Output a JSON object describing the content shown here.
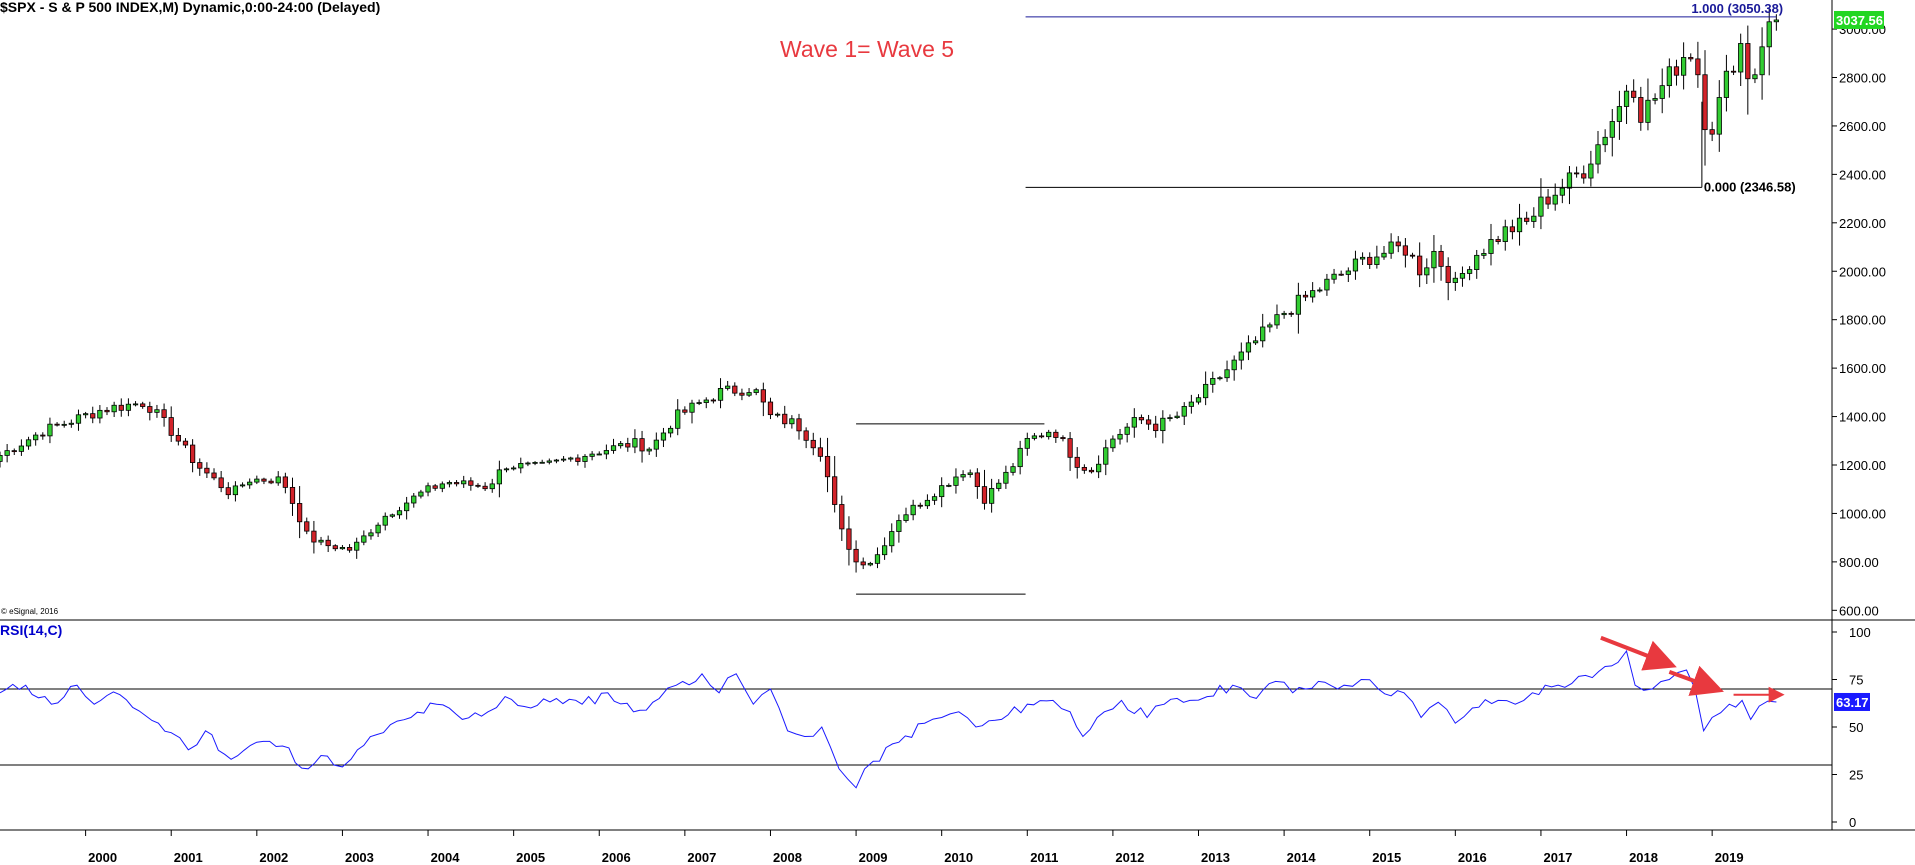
{
  "header": {
    "title": "$SPX - S & P 500 INDEX,M) Dynamic,0:00-24:00 (Delayed)",
    "copyright": "© eSignal, 2016"
  },
  "colors": {
    "up": "#32cd32",
    "down": "#d2232a",
    "rsi_line": "#1a1aff",
    "annotation": "#e8393f",
    "fib_top": "#1a1a99",
    "price_badge": "#22d622",
    "rsi_badge": "#1a1aff"
  },
  "chart_data": [
    {
      "type": "candlestick",
      "title": "$SPX - S & P 500 INDEX,M) Dynamic,0:00-24:00 (Delayed)",
      "interval": "monthly",
      "ylim": [
        560,
        3120
      ],
      "y_ticks": [
        "600.00",
        "800.00",
        "1000.00",
        "1200.00",
        "1400.00",
        "1600.00",
        "1800.00",
        "2000.00",
        "2200.00",
        "2400.00",
        "2600.00",
        "2800.00",
        "3000.00"
      ],
      "x_ticks": [
        "2000",
        "2001",
        "2002",
        "2003",
        "2004",
        "2005",
        "2006",
        "2007",
        "2008",
        "2009",
        "2010",
        "2011",
        "2012",
        "2013",
        "2014",
        "2015",
        "2016",
        "2017",
        "2018",
        "2019"
      ],
      "x_range": [
        1999.0,
        2020.4
      ],
      "last_value": "3037.56",
      "annotation": "Wave 1= Wave 5",
      "fib_levels": [
        {
          "label": "1.000 (3050.38)",
          "price": 3050.38,
          "x_from": 2010.98,
          "x_to": 2019.75
        },
        {
          "label": "0.000 (2346.58)",
          "price": 2346.58,
          "x_from": 2010.98,
          "x_to": 2018.88
        }
      ],
      "wave1_lines": [
        {
          "price": 1370,
          "x_from": 2009.0,
          "x_to": 2011.2
        },
        {
          "price": 667,
          "x_from": 2009.0,
          "x_to": 2010.98
        }
      ],
      "anchors": [
        [
          1999.0,
          1240
        ],
        [
          1999.5,
          1340
        ],
        [
          2000.2,
          1430
        ],
        [
          2000.7,
          1460
        ],
        [
          2001.0,
          1340
        ],
        [
          2001.3,
          1200
        ],
        [
          2001.7,
          1080
        ],
        [
          2001.9,
          1140
        ],
        [
          2002.3,
          1140
        ],
        [
          2002.6,
          900
        ],
        [
          2002.8,
          870
        ],
        [
          2003.1,
          850
        ],
        [
          2003.5,
          990
        ],
        [
          2003.9,
          1080
        ],
        [
          2004.2,
          1130
        ],
        [
          2004.7,
          1110
        ],
        [
          2004.9,
          1200
        ],
        [
          2005.3,
          1190
        ],
        [
          2005.9,
          1250
        ],
        [
          2006.4,
          1290
        ],
        [
          2006.6,
          1270
        ],
        [
          2006.9,
          1400
        ],
        [
          2007.4,
          1500
        ],
        [
          2007.8,
          1520
        ],
        [
          2008.0,
          1400
        ],
        [
          2008.3,
          1370
        ],
        [
          2008.6,
          1250
        ],
        [
          2008.8,
          950
        ],
        [
          2009.0,
          800
        ],
        [
          2009.2,
          800
        ],
        [
          2009.5,
          980
        ],
        [
          2010.0,
          1110
        ],
        [
          2010.3,
          1190
        ],
        [
          2010.5,
          1060
        ],
        [
          2010.8,
          1180
        ],
        [
          2011.0,
          1300
        ],
        [
          2011.3,
          1350
        ],
        [
          2011.6,
          1200
        ],
        [
          2011.75,
          1180
        ],
        [
          2012.0,
          1310
        ],
        [
          2012.3,
          1390
        ],
        [
          2012.5,
          1360
        ],
        [
          2012.8,
          1410
        ],
        [
          2013.0,
          1480
        ],
        [
          2013.5,
          1650
        ],
        [
          2014.0,
          1830
        ],
        [
          2014.5,
          1950
        ],
        [
          2015.0,
          2060
        ],
        [
          2015.4,
          2100
        ],
        [
          2015.6,
          2000
        ],
        [
          2015.75,
          2080
        ],
        [
          2016.0,
          1940
        ],
        [
          2016.2,
          2060
        ],
        [
          2016.6,
          2170
        ],
        [
          2016.85,
          2200
        ],
        [
          2017.0,
          2280
        ],
        [
          2017.5,
          2420
        ],
        [
          2017.95,
          2700
        ],
        [
          2018.05,
          2820
        ],
        [
          2018.15,
          2650
        ],
        [
          2018.3,
          2700
        ],
        [
          2018.7,
          2910
        ],
        [
          2018.8,
          2900
        ],
        [
          2018.95,
          2550
        ],
        [
          2019.0,
          2600
        ],
        [
          2019.2,
          2830
        ],
        [
          2019.35,
          2950
        ],
        [
          2019.45,
          2750
        ],
        [
          2019.6,
          2980
        ],
        [
          2019.75,
          3037.56
        ]
      ]
    },
    {
      "type": "line",
      "title": "RSI(14,C)",
      "ylim": [
        0,
        100
      ],
      "y_ticks": [
        "0",
        "25",
        "50",
        "75",
        "100"
      ],
      "hlines": [
        70,
        30
      ],
      "last_value": "63.17",
      "points": [
        [
          1999.0,
          68
        ],
        [
          1999.3,
          72
        ],
        [
          1999.6,
          62
        ],
        [
          1999.9,
          72
        ],
        [
          2000.1,
          62
        ],
        [
          2000.4,
          67
        ],
        [
          2000.7,
          56
        ],
        [
          2001.0,
          47
        ],
        [
          2001.2,
          38
        ],
        [
          2001.4,
          48
        ],
        [
          2001.7,
          33
        ],
        [
          2002.0,
          42
        ],
        [
          2002.3,
          40
        ],
        [
          2002.6,
          28
        ],
        [
          2002.75,
          35
        ],
        [
          2002.9,
          30
        ],
        [
          2003.1,
          33
        ],
        [
          2003.4,
          46
        ],
        [
          2003.8,
          55
        ],
        [
          2004.1,
          62
        ],
        [
          2004.4,
          54
        ],
        [
          2004.7,
          58
        ],
        [
          2004.9,
          66
        ],
        [
          2005.2,
          60
        ],
        [
          2005.5,
          65
        ],
        [
          2005.8,
          62
        ],
        [
          2006.1,
          68
        ],
        [
          2006.4,
          58
        ],
        [
          2006.7,
          65
        ],
        [
          2006.9,
          72
        ],
        [
          2007.2,
          78
        ],
        [
          2007.4,
          68
        ],
        [
          2007.6,
          78
        ],
        [
          2007.8,
          62
        ],
        [
          2008.0,
          70
        ],
        [
          2008.2,
          48
        ],
        [
          2008.4,
          45
        ],
        [
          2008.6,
          50
        ],
        [
          2008.8,
          28
        ],
        [
          2009.0,
          18
        ],
        [
          2009.2,
          32
        ],
        [
          2009.5,
          42
        ],
        [
          2009.8,
          52
        ],
        [
          2010.0,
          55
        ],
        [
          2010.2,
          58
        ],
        [
          2010.4,
          50
        ],
        [
          2010.7,
          54
        ],
        [
          2011.0,
          62
        ],
        [
          2011.3,
          64
        ],
        [
          2011.5,
          58
        ],
        [
          2011.65,
          45
        ],
        [
          2011.9,
          58
        ],
        [
          2012.1,
          64
        ],
        [
          2012.4,
          55
        ],
        [
          2012.6,
          62
        ],
        [
          2012.9,
          64
        ],
        [
          2013.1,
          66
        ],
        [
          2013.4,
          72
        ],
        [
          2013.6,
          66
        ],
        [
          2013.9,
          74
        ],
        [
          2014.1,
          68
        ],
        [
          2014.4,
          74
        ],
        [
          2014.7,
          72
        ],
        [
          2014.9,
          75
        ],
        [
          2015.1,
          70
        ],
        [
          2015.4,
          68
        ],
        [
          2015.6,
          55
        ],
        [
          2015.8,
          63
        ],
        [
          2016.0,
          52
        ],
        [
          2016.2,
          60
        ],
        [
          2016.5,
          64
        ],
        [
          2016.7,
          62
        ],
        [
          2016.9,
          68
        ],
        [
          2017.2,
          72
        ],
        [
          2017.6,
          76
        ],
        [
          2017.9,
          84
        ],
        [
          2018.0,
          90
        ],
        [
          2018.1,
          72
        ],
        [
          2018.3,
          70
        ],
        [
          2018.5,
          75
        ],
        [
          2018.7,
          80
        ],
        [
          2018.8,
          70
        ],
        [
          2018.9,
          48
        ],
        [
          2019.0,
          55
        ],
        [
          2019.2,
          62
        ],
        [
          2019.35,
          64
        ],
        [
          2019.45,
          54
        ],
        [
          2019.55,
          61
        ],
        [
          2019.75,
          63.17
        ]
      ],
      "arrows": [
        {
          "x1": 2017.7,
          "y1": 97,
          "x2": 2018.5,
          "y2": 83
        },
        {
          "x1": 2018.5,
          "y1": 79,
          "x2": 2019.05,
          "y2": 70
        },
        {
          "x1": 2019.25,
          "y1": 67,
          "x2": 2019.8,
          "y2": 67
        }
      ]
    }
  ]
}
